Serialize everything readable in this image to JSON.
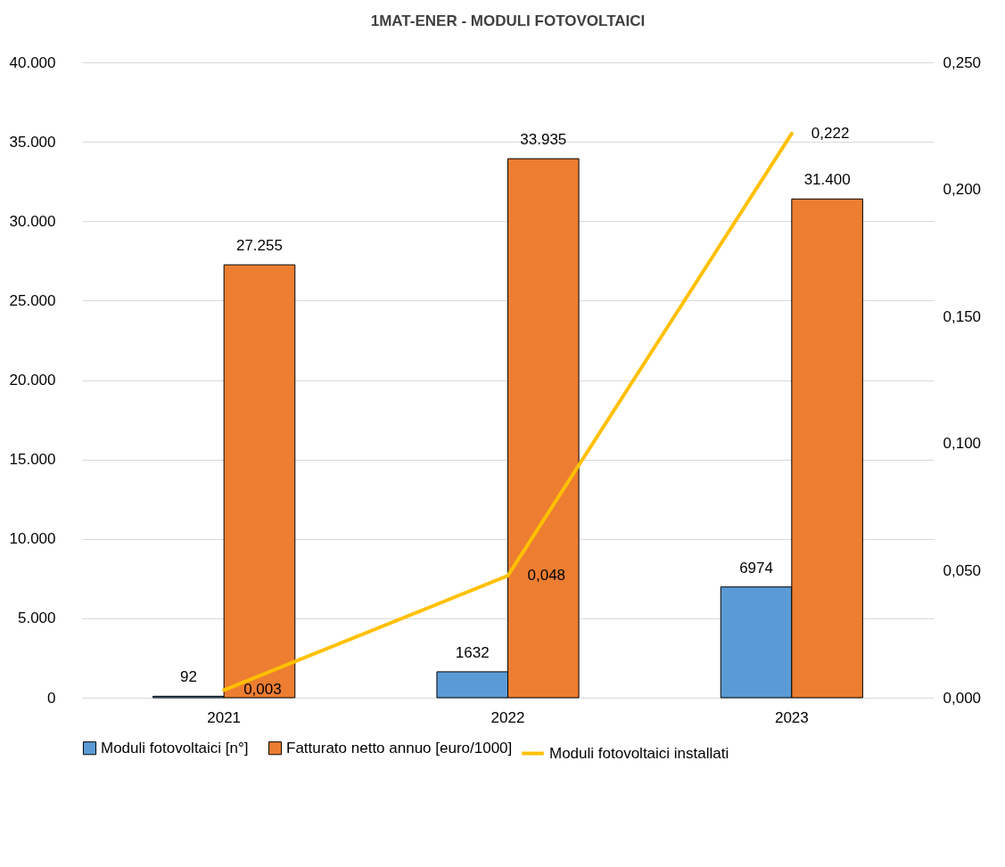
{
  "chart_data": {
    "type": "bar",
    "title": "1MAT-ENER - MODULI FOTOVOLTAICI",
    "categories": [
      "2021",
      "2022",
      "2023"
    ],
    "series": [
      {
        "name": "Moduli fotovoltaici [n°]",
        "color": "#5b9bd5",
        "values": [
          92,
          1632,
          6974
        ],
        "value_labels": [
          "92",
          "1632",
          "6974"
        ]
      },
      {
        "name": "Fatturato netto annuo [euro/1000]",
        "color": "#ed7d31",
        "values": [
          27255,
          33935,
          31400
        ],
        "value_labels": [
          "27.255",
          "33.935",
          "31.400"
        ]
      },
      {
        "name": "Moduli fotovoltaici installati",
        "type": "line",
        "axis": "y2",
        "color": "#ffc000",
        "values": [
          0.003,
          0.048,
          0.222
        ],
        "value_labels": [
          "0,003",
          "0,048",
          "0,222"
        ]
      }
    ],
    "ylim": [
      0,
      40000
    ],
    "yticks": [
      {
        "value": 0,
        "label": "0"
      },
      {
        "value": 5000,
        "label": "5.000"
      },
      {
        "value": 10000,
        "label": "10.000"
      },
      {
        "value": 15000,
        "label": "15.000"
      },
      {
        "value": 20000,
        "label": "20.000"
      },
      {
        "value": 25000,
        "label": "25.000"
      },
      {
        "value": 30000,
        "label": "30.000"
      },
      {
        "value": 35000,
        "label": "35.000"
      },
      {
        "value": 40000,
        "label": "40.000"
      }
    ],
    "y2lim": [
      0,
      0.25
    ],
    "y2ticks": [
      {
        "value": 0,
        "label": "0,000"
      },
      {
        "value": 0.05,
        "label": "0,050"
      },
      {
        "value": 0.1,
        "label": "0,100"
      },
      {
        "value": 0.15,
        "label": "0,150"
      },
      {
        "value": 0.2,
        "label": "0,200"
      },
      {
        "value": 0.25,
        "label": "0,250"
      }
    ],
    "grid": "y",
    "legend": "bottom"
  }
}
